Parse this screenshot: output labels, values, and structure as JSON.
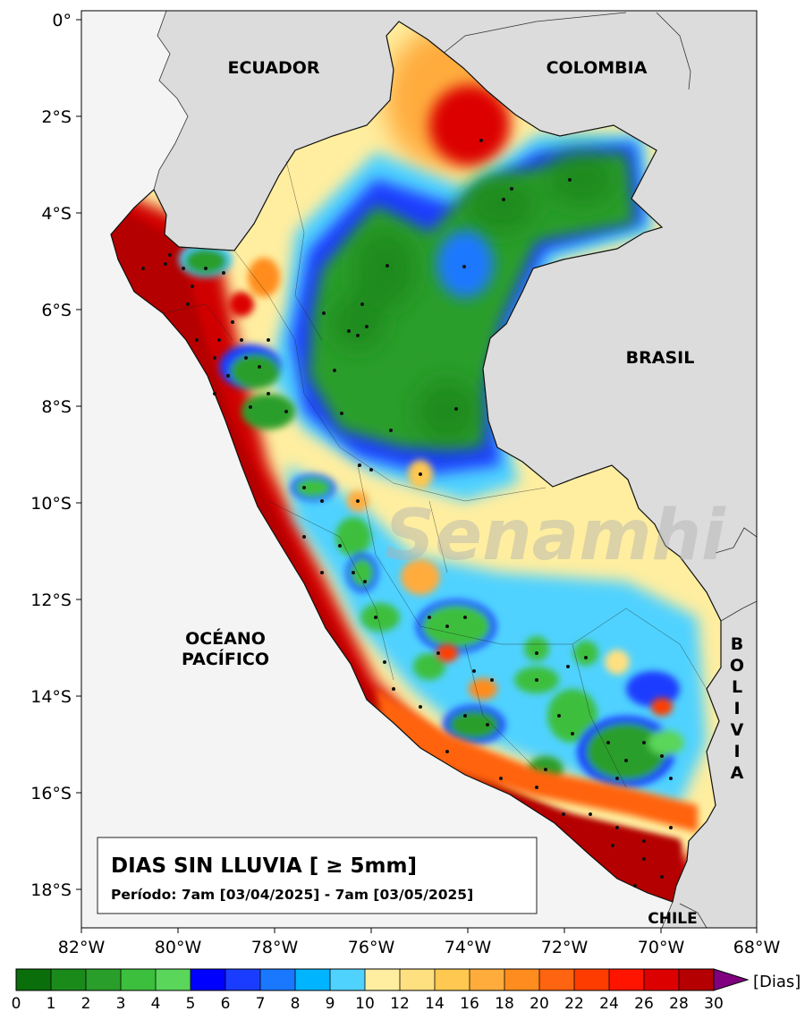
{
  "map": {
    "lat_ticks": [
      "0°",
      "2°S",
      "4°S",
      "6°S",
      "8°S",
      "10°S",
      "12°S",
      "14°S",
      "16°S",
      "18°S"
    ],
    "lon_ticks": [
      "82°W",
      "80°W",
      "78°W",
      "76°W",
      "74°W",
      "72°W",
      "70°W",
      "68°W"
    ],
    "countries": {
      "ecuador": "ECUADOR",
      "colombia": "COLOMBIA",
      "brasil": "BRASIL",
      "chile": "CHILE",
      "bolivia": [
        "B",
        "O",
        "L",
        "I",
        "V",
        "I",
        "A"
      ]
    },
    "ocean": [
      "OCÉANO",
      "PACÍFICO"
    ],
    "watermark": "Senamhi"
  },
  "title_box": {
    "title": "DIAS SIN LLUVIA [ ≥ 5mm]",
    "period": "Período: 7am [03/04/2025] - 7am [03/05/2025]"
  },
  "colorbar": {
    "unit": "[Dias]",
    "ticks": [
      "0",
      "1",
      "2",
      "3",
      "4",
      "5",
      "6",
      "7",
      "8",
      "9",
      "10",
      "12",
      "14",
      "16",
      "18",
      "20",
      "22",
      "24",
      "26",
      "28",
      "30"
    ],
    "colors": [
      "#0a6e0a",
      "#1a8a1a",
      "#2a9e2a",
      "#3cbf3c",
      "#5ad65a",
      "#0000ff",
      "#1a3cff",
      "#1a78ff",
      "#00b4ff",
      "#50d2ff",
      "#ffeea0",
      "#ffe080",
      "#ffc850",
      "#ffac3c",
      "#ff8c1e",
      "#ff6410",
      "#ff3c00",
      "#ff1400",
      "#dc0000",
      "#b40000"
    ],
    "extend_color": "#800080"
  }
}
